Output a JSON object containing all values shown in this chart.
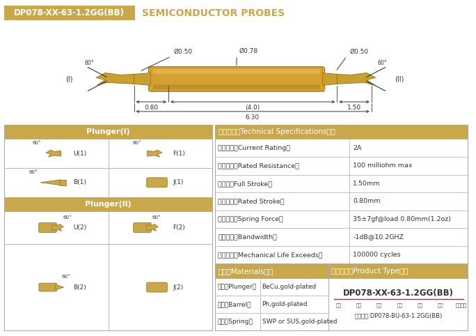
{
  "title_box_text": "DP078-XX-63-1.2GG(BB)",
  "title_right_text": "SEMICONDUCTOR PROBES",
  "gold_color": "#C9A84C",
  "gold_dark": "#A07820",
  "gold_body": "#D4A030",
  "white": "#FFFFFF",
  "border_color": "#AAAAAA",
  "dark": "#333333",
  "dim_phi050_left": "Ø0.50",
  "dim_phi078": "Ø0.78",
  "dim_phi050_right": "Ø0.50",
  "dim_080": "0.80",
  "dim_40": "(4.0)",
  "dim_150": "1.50",
  "dim_630": "6.30",
  "label_I": "(I)",
  "label_II": "(II)",
  "angle_60": "60°",
  "spec_header": "技术要求（Technical Specifications）：",
  "spec_rows": [
    [
      "额定电流（Current Rating）",
      "2A"
    ],
    [
      "额定电阻（Rated Resistance）",
      "100 milliohm max"
    ],
    [
      "满行程（Full Stroke）",
      "1.50mm"
    ],
    [
      "额定行程（Rated Stroke）",
      "0.80mm"
    ],
    [
      "额定弹力（Spring Force）",
      "35±7gf@load 0.80mm(1.2oz)"
    ],
    [
      "频率带宽（Bandwidth）",
      "-1dB@10.2GHZ"
    ],
    [
      "测试寿命（Mechanical Life Exceeds）",
      "100000 cycles"
    ]
  ],
  "plunger1_header": "Plunger(I)",
  "plunger2_header": "Plunger(II)",
  "materials_header": "材质（Materials）：",
  "materials_rows": [
    [
      "针头（Plunger）",
      "BeCu,gold-plated"
    ],
    [
      "针管（Barrel）",
      "Ph,gold-plated"
    ],
    [
      "弹簧（Spring）",
      "SWP or SUS,gold-plated"
    ]
  ],
  "product_header": "成品型号（Product Type）：",
  "product_code": "DP078-XX-63-1.2GG(BB)",
  "product_labels": [
    "系列",
    "规格",
    "头型",
    "总长",
    "弹力",
    "镜金",
    "针头材质"
  ],
  "order_example": "订购举例:DP078-BU-63-1.2GG(BB)"
}
